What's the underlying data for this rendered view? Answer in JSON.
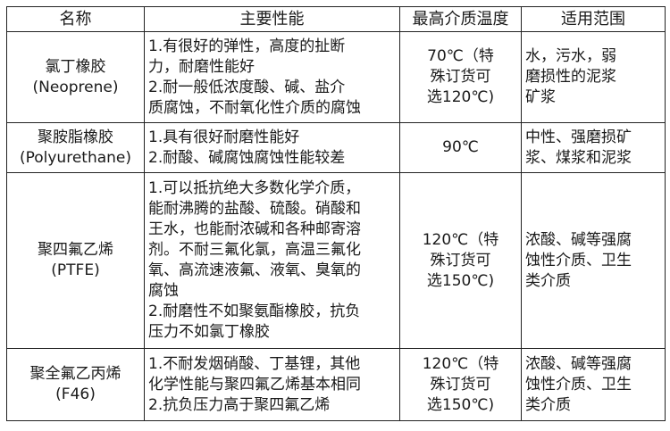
{
  "headers": [
    "名称",
    "主要性能",
    "最高介质温度",
    "适用范围"
  ],
  "rows": [
    {
      "name": "氯丁橡胶\n(Neoprene)",
      "performance": "1.有很好的弹性，高度的扯断\n力，耐磨性能好\n2.耐一般低浓度酸、碱、盐介\n质腐蚀，不耐氧化性介质的腐蚀",
      "max_temp": "70℃（特\n殊订货可\n选120℃)",
      "application": "水，污水，弱\n磨损性的泥浆\n矿浆"
    },
    {
      "name": "聚胺脂橡胶\n(Polyurethane)",
      "performance": "1.具有很好耐磨性能好\n2.耐酸、碱腐蚀腐蚀性能较差",
      "max_temp": "90℃",
      "application": "中性、强磨损矿\n浆、煤浆和泥浆"
    },
    {
      "name": "聚四氟乙烯\n(PTFE)",
      "performance": "1.可以抵抗绝大多数化学介质，\n能耐沸腾的盐酸、硫酸。硝酸和\n王水，也能耐浓碱和各种邮寄溶\n剂。不耐三氟化氯，高温三氟化\n氧、高流速液氟、液氧、臭氧的\n腐蚀\n2.耐磨性不如聚氨酯橡胶，抗负\n压力不如氯丁橡胶",
      "max_temp": "120℃（特\n殊订货可\n选150℃)",
      "application": "浓酸、碱等强腐\n蚀性介质、卫生\n类介质"
    },
    {
      "name": "聚全氟乙丙烯\n(F46)",
      "performance": "1.不耐发烟硝酸、丁基锂，其他\n化学性能与聚四氟乙烯基本相同\n2.抗负压力高于聚四氟乙烯",
      "max_temp": "120℃（特\n殊订货可\n选150℃)",
      "application": "浓酸、碱等强腐\n蚀性介质、卫生\n类介质"
    }
  ]
}
